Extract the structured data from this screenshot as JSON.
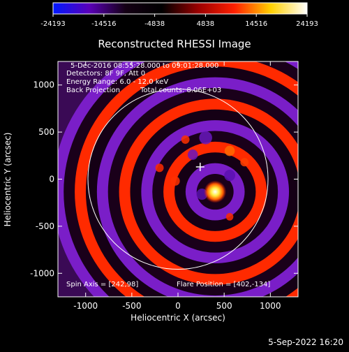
{
  "chart_data": {
    "type": "heatmap",
    "title": "Reconstructed RHESSI Image",
    "xlabel": "Heliocentric X (arcsec)",
    "ylabel": "Heliocentric Y (arcsec)",
    "xlim": [
      -1300,
      1300
    ],
    "ylim": [
      -1250,
      1250
    ],
    "x_ticks": [
      -1000,
      -500,
      0,
      500,
      1000
    ],
    "y_ticks": [
      1000,
      500,
      0,
      -500,
      -1000
    ],
    "colorbar": {
      "min": -24193,
      "max": 24193,
      "tick_labels": [
        "-24193",
        "-14516",
        "-4838",
        "4838",
        "14516",
        "24193"
      ],
      "stops": [
        "#0018ff",
        "#5a00b8",
        "#140014",
        "#000000",
        "#9a0000",
        "#ff2000",
        "#ffd000",
        "#ffffff"
      ]
    },
    "annotations": [
      "5-Dec-2016 08:55:28.000 to 09:01:28.000",
      "Detectors: 8F 9F, Att 0",
      "Energy Range: 6.0 - 12.0 keV",
      "Back Projection",
      "Total counts: 8.06E+03"
    ],
    "spin_axis": "Spin Axis = [242,98]",
    "flare_position_label": "Flare Position = [402,-134]",
    "flare_position": [
      402,
      -134
    ],
    "marker_position": [
      240,
      130
    ],
    "solar_limb_radius_arcsec": 975,
    "timestamp": "5-Sep-2022 16:20"
  }
}
